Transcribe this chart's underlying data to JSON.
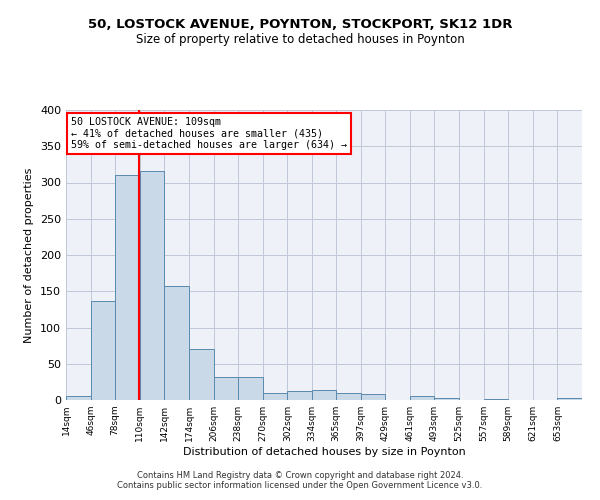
{
  "title_line1": "50, LOSTOCK AVENUE, POYNTON, STOCKPORT, SK12 1DR",
  "title_line2": "Size of property relative to detached houses in Poynton",
  "xlabel": "Distribution of detached houses by size in Poynton",
  "ylabel": "Number of detached properties",
  "bin_labels": [
    "14sqm",
    "46sqm",
    "78sqm",
    "110sqm",
    "142sqm",
    "174sqm",
    "206sqm",
    "238sqm",
    "270sqm",
    "302sqm",
    "334sqm",
    "365sqm",
    "397sqm",
    "429sqm",
    "461sqm",
    "493sqm",
    "525sqm",
    "557sqm",
    "589sqm",
    "621sqm",
    "653sqm"
  ],
  "bin_edges": [
    14,
    46,
    78,
    110,
    142,
    174,
    206,
    238,
    270,
    302,
    334,
    365,
    397,
    429,
    461,
    493,
    525,
    557,
    589,
    621,
    653,
    685
  ],
  "bar_heights": [
    5,
    137,
    311,
    316,
    157,
    71,
    32,
    32,
    10,
    13,
    14,
    10,
    8,
    0,
    5,
    3,
    0,
    2,
    0,
    0,
    3
  ],
  "bar_color": "#c9d9e8",
  "bar_edge_color": "#5a8ab0",
  "red_line_x": 109,
  "annotation_text": "50 LOSTOCK AVENUE: 109sqm\n← 41% of detached houses are smaller (435)\n59% of semi-detached houses are larger (634) →",
  "annotation_box_color": "white",
  "annotation_box_edge_color": "red",
  "ylim": [
    0,
    400
  ],
  "yticks": [
    0,
    50,
    100,
    150,
    200,
    250,
    300,
    350,
    400
  ],
  "grid_color": "#c0c8d8",
  "background_color": "#eef2f8",
  "footer_line1": "Contains HM Land Registry data © Crown copyright and database right 2024.",
  "footer_line2": "Contains public sector information licensed under the Open Government Licence v3.0."
}
